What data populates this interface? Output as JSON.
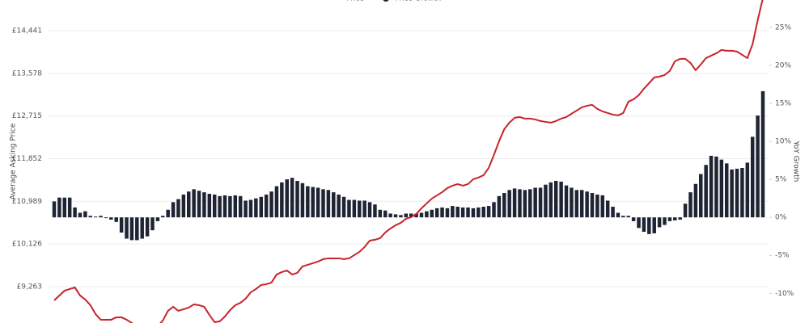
{
  "chart_data": {
    "type": "bar-line",
    "legend": {
      "position": "top"
    },
    "y_label": "Average Asking Price",
    "y2_label": "YoY Growth",
    "grid": true,
    "ylim": [
      8527,
      15062
    ],
    "yticks": [
      {
        "value": 9263,
        "label": "£9,263"
      },
      {
        "value": 10126,
        "label": "£10,126"
      },
      {
        "value": 10989,
        "label": "£10,989"
      },
      {
        "value": 11852,
        "label": "£11,852"
      },
      {
        "value": 12715,
        "label": "£12,715"
      },
      {
        "value": 13578,
        "label": "£13,578"
      },
      {
        "value": 14441,
        "label": "£14,441"
      }
    ],
    "y2lim": [
      -13.9,
      28.6
    ],
    "y2ticks": [
      {
        "value": -10,
        "label": "-10%"
      },
      {
        "value": -5,
        "label": "-5%"
      },
      {
        "value": 0,
        "label": "0%"
      },
      {
        "value": 5,
        "label": "5%"
      },
      {
        "value": 10,
        "label": "10%"
      },
      {
        "value": 15,
        "label": "15%"
      },
      {
        "value": 20,
        "label": "20%"
      },
      {
        "value": 25,
        "label": "25%"
      }
    ],
    "series": [
      {
        "name": "Price",
        "type": "line",
        "color": "#c8232c",
        "values": [
          8985,
          9083,
          9181,
          9214,
          9247,
          9083,
          9002,
          8887,
          8707,
          8593,
          8593,
          8593,
          8642,
          8642,
          8593,
          8528,
          8446,
          8397,
          8364,
          8397,
          8462,
          8577,
          8773,
          8855,
          8773,
          8806,
          8838,
          8904,
          8887,
          8855,
          8691,
          8544,
          8560,
          8658,
          8789,
          8887,
          8936,
          9018,
          9149,
          9214,
          9296,
          9312,
          9345,
          9508,
          9557,
          9590,
          9508,
          9541,
          9672,
          9704,
          9737,
          9770,
          9819,
          9835,
          9835,
          9835,
          9819,
          9835,
          9900,
          9966,
          10064,
          10194,
          10211,
          10243,
          10358,
          10439,
          10505,
          10554,
          10636,
          10668,
          10734,
          10848,
          10946,
          11044,
          11109,
          11175,
          11256,
          11306,
          11338,
          11306,
          11338,
          11436,
          11469,
          11518,
          11665,
          11926,
          12204,
          12449,
          12580,
          12678,
          12694,
          12662,
          12662,
          12645,
          12613,
          12596,
          12580,
          12613,
          12662,
          12694,
          12760,
          12825,
          12890,
          12923,
          12940,
          12858,
          12809,
          12776,
          12743,
          12727,
          12776,
          13005,
          13054,
          13136,
          13266,
          13381,
          13495,
          13512,
          13544,
          13626,
          13822,
          13871,
          13871,
          13789,
          13642,
          13757,
          13887,
          13936,
          13985,
          14051,
          14034,
          14034,
          14018,
          13952,
          13887,
          14165,
          14655,
          15096
        ]
      },
      {
        "name": "Price Growth",
        "type": "bar",
        "axis": "y2",
        "color": "#1e2433",
        "values": [
          2.1,
          2.6,
          2.6,
          2.6,
          1.3,
          0.6,
          0.8,
          0.2,
          0.1,
          0.2,
          -0.1,
          -0.3,
          -0.6,
          -2.0,
          -2.8,
          -3.0,
          -3.0,
          -2.8,
          -2.5,
          -1.7,
          -0.5,
          0.2,
          1.0,
          2.0,
          2.4,
          3.0,
          3.4,
          3.7,
          3.5,
          3.3,
          3.1,
          3.0,
          2.8,
          2.9,
          2.8,
          2.9,
          2.8,
          2.2,
          2.3,
          2.5,
          2.7,
          3.0,
          3.4,
          4.1,
          4.6,
          5.0,
          5.2,
          4.8,
          4.5,
          4.1,
          4.0,
          3.9,
          3.7,
          3.6,
          3.3,
          3.0,
          2.7,
          2.3,
          2.3,
          2.2,
          2.2,
          2.0,
          1.7,
          1.0,
          0.9,
          0.5,
          0.4,
          0.3,
          0.5,
          0.5,
          0.5,
          0.6,
          0.8,
          1.0,
          1.2,
          1.3,
          1.2,
          1.5,
          1.4,
          1.3,
          1.3,
          1.2,
          1.3,
          1.4,
          1.5,
          2.0,
          2.8,
          3.2,
          3.6,
          3.8,
          3.7,
          3.6,
          3.7,
          3.9,
          3.9,
          4.3,
          4.6,
          4.8,
          4.7,
          4.2,
          3.9,
          3.6,
          3.6,
          3.4,
          3.2,
          3.0,
          2.9,
          2.2,
          1.4,
          0.6,
          0.2,
          0.2,
          -0.5,
          -1.4,
          -1.9,
          -2.2,
          -2.1,
          -1.3,
          -1.0,
          -0.5,
          -0.4,
          -0.3,
          1.8,
          3.3,
          4.4,
          5.7,
          6.9,
          8.1,
          8.0,
          7.6,
          7.1,
          6.3,
          6.4,
          6.5,
          7.2,
          10.6,
          13.4,
          16.6
        ]
      }
    ]
  }
}
